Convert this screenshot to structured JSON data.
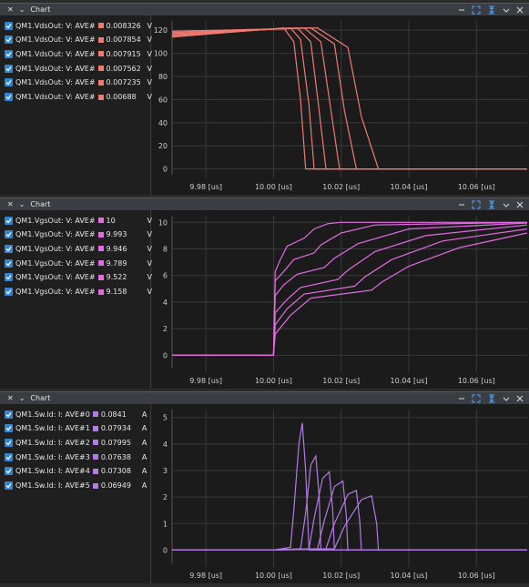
{
  "panels": [
    {
      "title": "Chart",
      "color": "#f07a72",
      "unit": "V",
      "rows": [
        {
          "label": "QM1.VdsOut: V: AVE#",
          "value": "0.008326"
        },
        {
          "label": "QM1.VdsOut: V: AVE#",
          "value": "0.007854"
        },
        {
          "label": "QM1.VdsOut: V: AVE#",
          "value": "0.007915"
        },
        {
          "label": "QM1.VdsOut: V: AVE#",
          "value": "0.007562"
        },
        {
          "label": "QM1.VdsOut: V: AVE#",
          "value": "0.007235"
        },
        {
          "label": "QM1.VdsOut: V: AVE#",
          "value": "0.00688"
        }
      ]
    },
    {
      "title": "Chart",
      "color": "#e36ce3",
      "unit": "V",
      "rows": [
        {
          "label": "QM1.VgsOut: V: AVE#",
          "value": "10"
        },
        {
          "label": "QM1.VgsOut: V: AVE#",
          "value": "9.993"
        },
        {
          "label": "QM1.VgsOut: V: AVE#",
          "value": "9.946"
        },
        {
          "label": "QM1.VgsOut: V: AVE#",
          "value": "9.789"
        },
        {
          "label": "QM1.VgsOut: V: AVE#",
          "value": "9.522"
        },
        {
          "label": "QM1.VgsOut: V: AVE#",
          "value": "9.158"
        }
      ]
    },
    {
      "title": "Chart",
      "color": "#b27be6",
      "unit": "A",
      "rows": [
        {
          "label": "QM1.Sw.Id: I: AVE#0",
          "value": "0.0841"
        },
        {
          "label": "QM1.Sw.Id: I: AVE#1",
          "value": "0.07934"
        },
        {
          "label": "QM1.Sw.Id: I: AVE#2",
          "value": "0.07995"
        },
        {
          "label": "QM1.Sw.Id: I: AVE#3",
          "value": "0.07638"
        },
        {
          "label": "QM1.Sw.Id: I: AVE#4",
          "value": "0.07308"
        },
        {
          "label": "QM1.Sw.Id: I: AVE#5",
          "value": "0.06949"
        }
      ]
    }
  ],
  "chart_data": [
    {
      "type": "line",
      "xlabel": "",
      "ylabel": "",
      "xlim": [
        9.97,
        10.075
      ],
      "ylim": [
        -5,
        128
      ],
      "xticks": [
        "9.98 [us]",
        "10.00 [us]",
        "10.02 [us]",
        "10.04 [us]",
        "10.06 [us]"
      ],
      "yticks": [
        "0",
        "20",
        "40",
        "60",
        "80",
        "100",
        "120"
      ],
      "grid": true,
      "series": [
        {
          "values": [
            [
              9.97,
              114
            ],
            [
              10.003,
              122
            ],
            [
              10.006,
              110
            ],
            [
              10.008,
              60
            ],
            [
              10.0095,
              0
            ],
            [
              10.075,
              0
            ]
          ]
        },
        {
          "values": [
            [
              9.97,
              115
            ],
            [
              10.005,
              122
            ],
            [
              10.008,
              112
            ],
            [
              10.0105,
              55
            ],
            [
              10.012,
              0
            ],
            [
              10.075,
              0
            ]
          ]
        },
        {
          "values": [
            [
              9.97,
              116
            ],
            [
              10.007,
              122
            ],
            [
              10.011,
              110
            ],
            [
              10.0135,
              50
            ],
            [
              10.0155,
              0
            ],
            [
              10.075,
              0
            ]
          ]
        },
        {
          "values": [
            [
              9.97,
              117
            ],
            [
              10.009,
              122
            ],
            [
              10.014,
              110
            ],
            [
              10.017,
              50
            ],
            [
              10.0195,
              0
            ],
            [
              10.075,
              0
            ]
          ]
        },
        {
          "values": [
            [
              9.97,
              118
            ],
            [
              10.011,
              122
            ],
            [
              10.018,
              108
            ],
            [
              10.021,
              50
            ],
            [
              10.0245,
              0
            ],
            [
              10.075,
              0
            ]
          ]
        },
        {
          "values": [
            [
              9.97,
              119
            ],
            [
              10.013,
              122
            ],
            [
              10.022,
              105
            ],
            [
              10.026,
              45
            ],
            [
              10.031,
              0
            ],
            [
              10.075,
              0
            ]
          ]
        }
      ]
    },
    {
      "type": "line",
      "xlabel": "",
      "ylabel": "",
      "xlim": [
        9.97,
        10.075
      ],
      "ylim": [
        -1,
        10.5
      ],
      "xticks": [
        "9.98 [us]",
        "10.00 [us]",
        "10.02 [us]",
        "10.04 [us]",
        "10.06 [us]"
      ],
      "yticks": [
        "0",
        "2",
        "4",
        "6",
        "8",
        "10"
      ],
      "grid": true,
      "series": [
        {
          "values": [
            [
              9.97,
              0
            ],
            [
              10.0,
              0
            ],
            [
              10.0005,
              6.3
            ],
            [
              10.002,
              7.2
            ],
            [
              10.004,
              8.2
            ],
            [
              10.009,
              8.8
            ],
            [
              10.012,
              9.5
            ],
            [
              10.016,
              9.9
            ],
            [
              10.02,
              10
            ],
            [
              10.075,
              10
            ]
          ]
        },
        {
          "values": [
            [
              9.97,
              0
            ],
            [
              10.0,
              0
            ],
            [
              10.0005,
              5.6
            ],
            [
              10.003,
              6.3
            ],
            [
              10.006,
              7.2
            ],
            [
              10.012,
              7.7
            ],
            [
              10.014,
              8.3
            ],
            [
              10.02,
              9.2
            ],
            [
              10.03,
              9.8
            ],
            [
              10.075,
              10
            ]
          ]
        },
        {
          "values": [
            [
              9.97,
              0
            ],
            [
              10.0,
              0
            ],
            [
              10.0005,
              4.5
            ],
            [
              10.003,
              5.3
            ],
            [
              10.007,
              6.1
            ],
            [
              10.015,
              6.6
            ],
            [
              10.018,
              7.3
            ],
            [
              10.025,
              8.4
            ],
            [
              10.04,
              9.5
            ],
            [
              10.075,
              9.95
            ]
          ]
        },
        {
          "values": [
            [
              9.97,
              0
            ],
            [
              10.0,
              0
            ],
            [
              10.0005,
              3.2
            ],
            [
              10.004,
              4.2
            ],
            [
              10.008,
              5.1
            ],
            [
              10.019,
              5.7
            ],
            [
              10.022,
              6.4
            ],
            [
              10.03,
              7.8
            ],
            [
              10.045,
              9.0
            ],
            [
              10.075,
              9.8
            ]
          ]
        },
        {
          "values": [
            [
              9.97,
              0
            ],
            [
              10.0,
              0
            ],
            [
              10.0005,
              2.3
            ],
            [
              10.004,
              3.5
            ],
            [
              10.009,
              4.6
            ],
            [
              10.024,
              5.2
            ],
            [
              10.027,
              5.9
            ],
            [
              10.035,
              7.2
            ],
            [
              10.05,
              8.6
            ],
            [
              10.075,
              9.5
            ]
          ]
        },
        {
          "values": [
            [
              9.97,
              0
            ],
            [
              10.0,
              0
            ],
            [
              10.0005,
              1.6
            ],
            [
              10.005,
              3.0
            ],
            [
              10.011,
              4.3
            ],
            [
              10.029,
              4.9
            ],
            [
              10.032,
              5.5
            ],
            [
              10.04,
              6.7
            ],
            [
              10.055,
              8.1
            ],
            [
              10.075,
              9.2
            ]
          ]
        }
      ]
    },
    {
      "type": "line",
      "xlabel": "",
      "ylabel": "",
      "xlim": [
        9.97,
        10.075
      ],
      "ylim": [
        -0.5,
        5.3
      ],
      "xticks": [
        "9.98 [us]",
        "10.00 [us]",
        "10.02 [us]",
        "10.04 [us]",
        "10.06 [us]"
      ],
      "yticks": [
        "0",
        "1",
        "2",
        "3",
        "4",
        "5"
      ],
      "grid": true,
      "series": [
        {
          "values": [
            [
              9.97,
              0
            ],
            [
              10.0,
              0
            ],
            [
              10.005,
              0.1
            ],
            [
              10.006,
              1.5
            ],
            [
              10.0075,
              4.0
            ],
            [
              10.0085,
              4.8
            ],
            [
              10.0095,
              3.0
            ],
            [
              10.0105,
              0
            ],
            [
              10.075,
              0
            ]
          ]
        },
        {
          "values": [
            [
              9.97,
              0
            ],
            [
              10.0,
              0
            ],
            [
              10.008,
              0.05
            ],
            [
              10.0095,
              1.4
            ],
            [
              10.011,
              3.2
            ],
            [
              10.0125,
              3.55
            ],
            [
              10.0135,
              2.0
            ],
            [
              10.014,
              0
            ],
            [
              10.075,
              0
            ]
          ]
        },
        {
          "values": [
            [
              9.97,
              0
            ],
            [
              10.0,
              0
            ],
            [
              10.0105,
              0.05
            ],
            [
              10.012,
              1.2
            ],
            [
              10.0145,
              2.7
            ],
            [
              10.0165,
              2.95
            ],
            [
              10.0175,
              1.5
            ],
            [
              10.018,
              0
            ],
            [
              10.075,
              0
            ]
          ]
        },
        {
          "values": [
            [
              9.97,
              0
            ],
            [
              10.0,
              0
            ],
            [
              10.013,
              0.05
            ],
            [
              10.015,
              1.1
            ],
            [
              10.018,
              2.4
            ],
            [
              10.0205,
              2.6
            ],
            [
              10.0215,
              1.3
            ],
            [
              10.022,
              0
            ],
            [
              10.075,
              0
            ]
          ]
        },
        {
          "values": [
            [
              9.97,
              0
            ],
            [
              10.0,
              0
            ],
            [
              10.0155,
              0.05
            ],
            [
              10.018,
              1.0
            ],
            [
              10.022,
              2.1
            ],
            [
              10.0245,
              2.25
            ],
            [
              10.0255,
              1.1
            ],
            [
              10.026,
              0
            ],
            [
              10.075,
              0
            ]
          ]
        },
        {
          "values": [
            [
              9.97,
              0
            ],
            [
              10.0,
              0
            ],
            [
              10.018,
              0.05
            ],
            [
              10.021,
              0.9
            ],
            [
              10.026,
              1.9
            ],
            [
              10.029,
              2.05
            ],
            [
              10.0305,
              1.0
            ],
            [
              10.031,
              0
            ],
            [
              10.075,
              0
            ]
          ]
        }
      ]
    }
  ]
}
